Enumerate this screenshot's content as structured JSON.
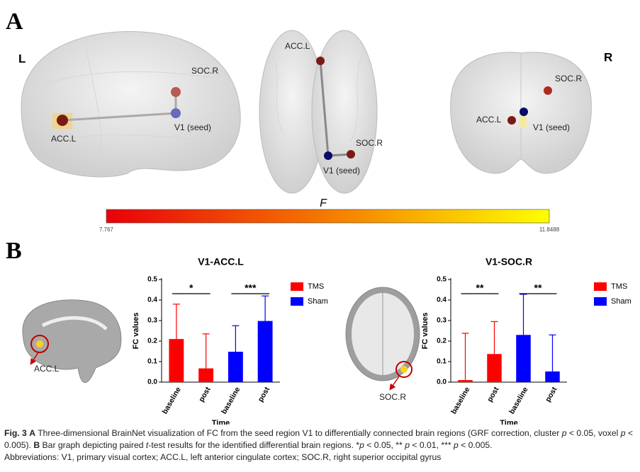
{
  "panel_a": {
    "label": "A",
    "left_label": "L",
    "right_label": "R",
    "views": [
      {
        "labels": [
          "SOC.R",
          "V1 (seed)",
          "ACC.L"
        ]
      },
      {
        "labels": [
          "ACC.L",
          "SOC.R",
          "V1 (seed)"
        ]
      },
      {
        "labels": [
          "SOC.R",
          "ACC.L",
          "V1 (seed)"
        ]
      }
    ],
    "colorbar": {
      "label": "F",
      "min": 7.767,
      "max": 11.8488
    }
  },
  "panel_b": {
    "label": "B",
    "inset_labels": [
      "ACC.L",
      "SOC.R"
    ]
  },
  "chart_data": [
    {
      "type": "bar",
      "title": "V1-ACC.L",
      "xlabel": "Time",
      "ylabel": "FC values",
      "categories": [
        "baseline",
        "post"
      ],
      "series": [
        {
          "name": "TMS",
          "color": "#ff0000",
          "values": [
            0.21,
            0.067
          ],
          "errors": [
            0.17,
            0.168
          ],
          "significance": "*"
        },
        {
          "name": "Sham",
          "color": "#0000ff",
          "values": [
            0.148,
            0.298
          ],
          "errors": [
            0.127,
            0.122
          ],
          "significance": "***"
        }
      ],
      "ylim": [
        0,
        0.5
      ],
      "yticks": [
        {
          "value": 0,
          "label": "0.0"
        },
        0.1,
        0.2,
        0.3,
        0.4,
        0.5
      ]
    },
    {
      "type": "bar",
      "title": "V1-SOC.R",
      "xlabel": "Time",
      "ylabel": "FC values",
      "categories": [
        "baseline",
        "post"
      ],
      "series": [
        {
          "name": "TMS",
          "color": "#ff0000",
          "values": [
            0.01,
            0.137
          ],
          "errors": [
            0.228,
            0.158
          ],
          "significance": "**"
        },
        {
          "name": "Sham",
          "color": "#0000ff",
          "values": [
            0.23,
            0.052
          ],
          "errors": [
            0.198,
            0.178
          ],
          "significance": "**"
        }
      ],
      "ylim": [
        0,
        0.5
      ],
      "yticks": [
        {
          "value": 0,
          "label": "0.0"
        },
        0.1,
        0.2,
        0.3,
        0.4,
        0.5
      ]
    }
  ],
  "caption": {
    "runs": [
      {
        "text": "Fig. 3",
        "bold": true
      },
      {
        "text": " "
      },
      {
        "text": "A",
        "bold": true
      },
      {
        "text": " Three-dimensional BrainNet visualization of FC from the seed region V1 to differentially connected brain regions (GRF correction, cluster "
      },
      {
        "text": "p",
        "italic": true
      },
      {
        "text": " < 0.05, voxel "
      },
      {
        "text": "p",
        "italic": true
      },
      {
        "text": " < 0.005). "
      },
      {
        "text": "B",
        "bold": true
      },
      {
        "text": " Bar graph depicting paired "
      },
      {
        "text": "t",
        "italic": true
      },
      {
        "text": "-test results for the identified differential brain regions. *"
      },
      {
        "text": "p",
        "italic": true
      },
      {
        "text": " < 0.05, ** "
      },
      {
        "text": "p",
        "italic": true
      },
      {
        "text": " < 0.01, *** "
      },
      {
        "text": "p",
        "italic": true
      },
      {
        "text": " < 0.005."
      }
    ],
    "abbreviations": "Abbreviations: V1, primary visual cortex; ACC.L, left anterior cingulate cortex; SOC.R, right superior occipital gyrus"
  }
}
